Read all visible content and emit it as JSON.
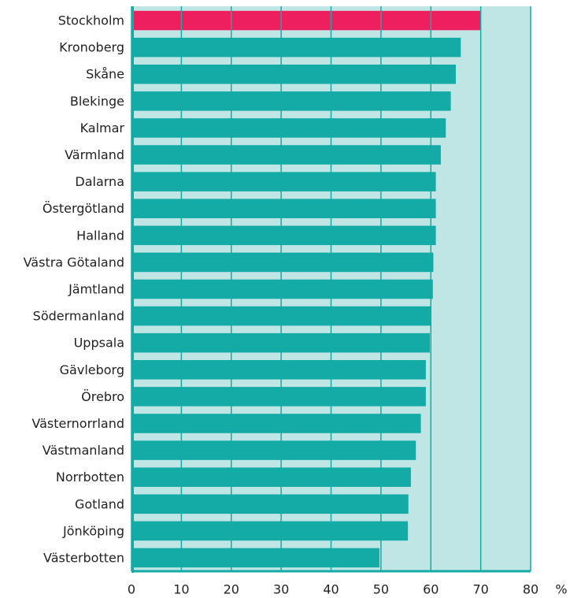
{
  "chart_data": {
    "type": "bar",
    "orientation": "horizontal",
    "categories": [
      "Stockholm",
      "Kronoberg",
      "Skåne",
      "Blekinge",
      "Kalmar",
      "Värmland",
      "Dalarna",
      "Östergötland",
      "Halland",
      "Västra Götaland",
      "Jämtland",
      "Södermanland",
      "Uppsala",
      "Gävleborg",
      "Örebro",
      "Västernorrland",
      "Västmanland",
      "Norrbotten",
      "Gotland",
      "Jönköping",
      "Västerbotten"
    ],
    "values": [
      70,
      66,
      65,
      64,
      63,
      62,
      61,
      61,
      61,
      60.5,
      60.4,
      60,
      59.8,
      59,
      59,
      58,
      57,
      56,
      55.5,
      55.4,
      49.7
    ],
    "colors": [
      "#ee1f5f",
      "#14aaa6",
      "#14aaa6",
      "#14aaa6",
      "#14aaa6",
      "#14aaa6",
      "#14aaa6",
      "#14aaa6",
      "#14aaa6",
      "#14aaa6",
      "#14aaa6",
      "#14aaa6",
      "#14aaa6",
      "#14aaa6",
      "#14aaa6",
      "#14aaa6",
      "#14aaa6",
      "#14aaa6",
      "#14aaa6",
      "#14aaa6",
      "#14aaa6"
    ],
    "xlabel": "%",
    "xlim": [
      0,
      80
    ],
    "xticks": [
      0,
      10,
      20,
      30,
      40,
      50,
      60,
      70,
      80
    ],
    "grid": true
  }
}
